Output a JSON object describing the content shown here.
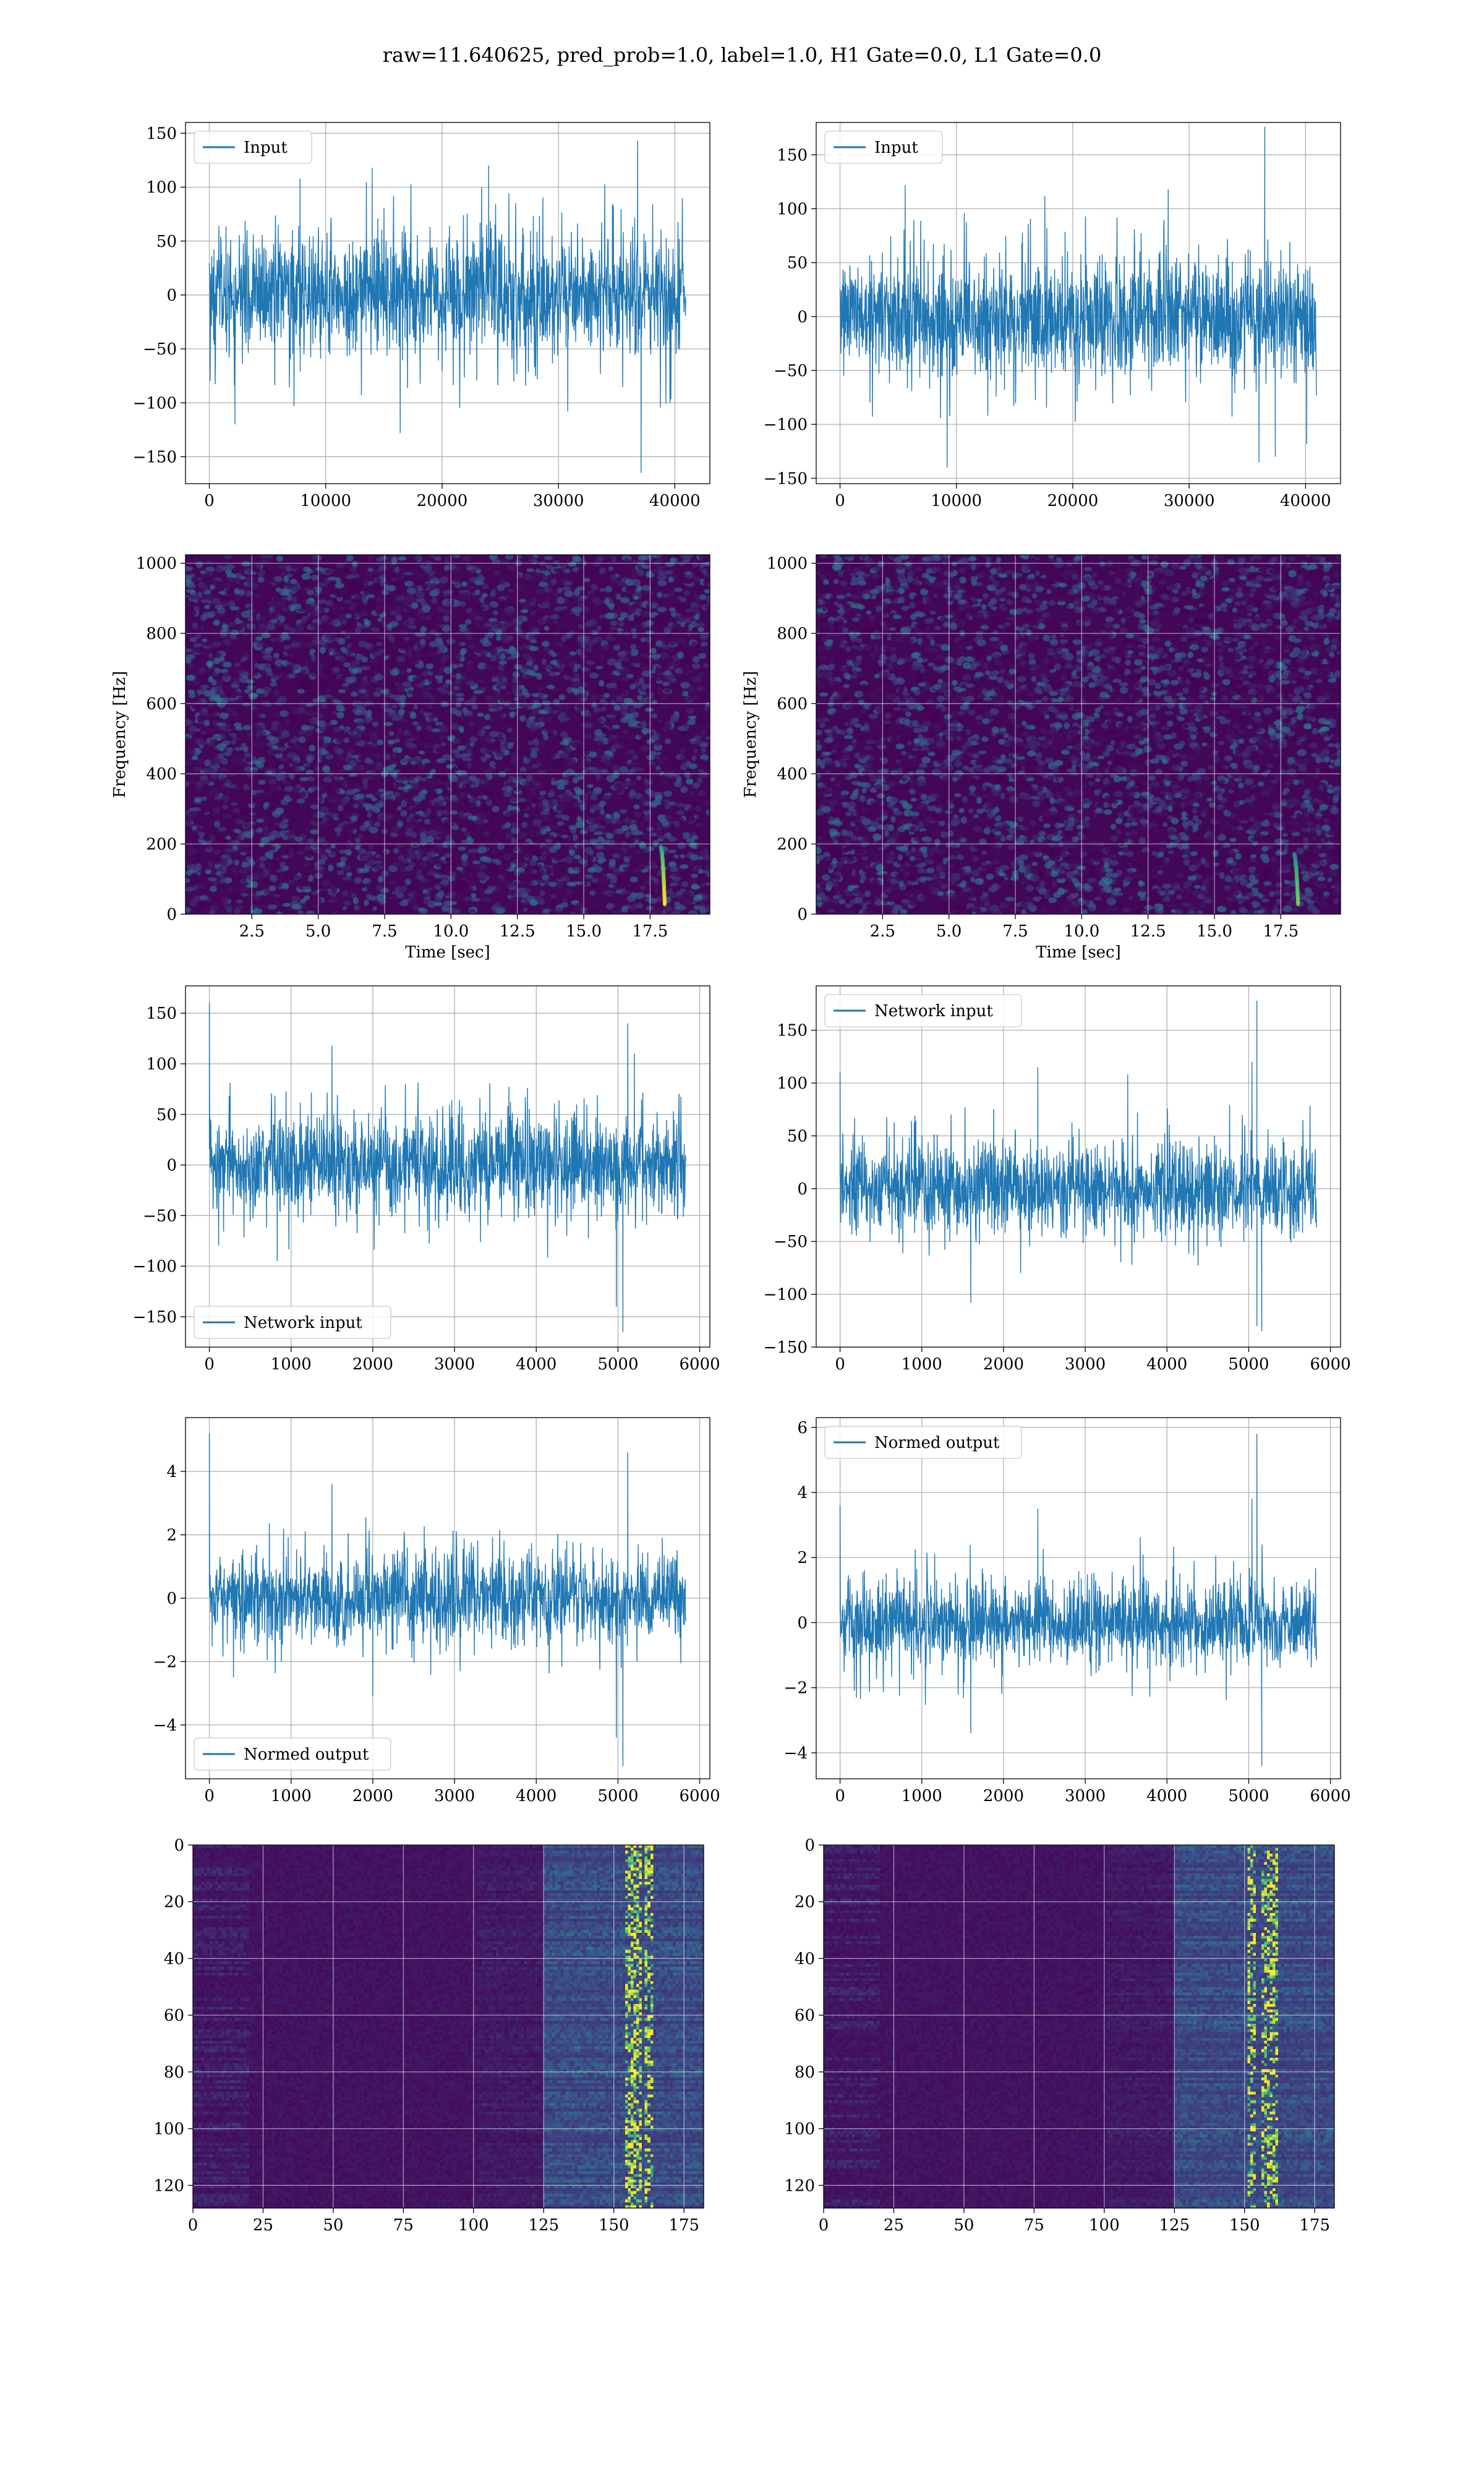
{
  "figure": {
    "suptitle": "raw=11.640625, pred_prob=1.0, label=1.0, H1 Gate=0.0, L1 Gate=0.0",
    "colors": {
      "line": "#1f77b4",
      "viridis_low": "#440154",
      "viridis_mid": "#21918c",
      "viridis_high": "#fde725"
    }
  },
  "chart_data": [
    {
      "id": "h1-input",
      "type": "line",
      "detector_column": "left",
      "legend": "Input",
      "legend_loc": "upper left",
      "xlim": [
        -2048,
        43008
      ],
      "ylim": [
        -175,
        160
      ],
      "xticks": [
        0,
        10000,
        20000,
        30000,
        40000
      ],
      "yticks": [
        -150,
        -100,
        -50,
        0,
        50,
        100,
        150
      ],
      "n_samples": 40960,
      "band": [
        -70,
        70
      ],
      "typical_peak": 105,
      "spikes": [
        {
          "x": 36800,
          "y": 143
        },
        {
          "x": 37100,
          "y": -165
        },
        {
          "x": 24000,
          "y": 120
        },
        {
          "x": 14000,
          "y": 118
        },
        {
          "x": 2200,
          "y": -120
        },
        {
          "x": 30800,
          "y": -108
        },
        {
          "x": 16400,
          "y": -128
        },
        {
          "x": 7800,
          "y": 108
        }
      ],
      "grid": true
    },
    {
      "id": "l1-input",
      "type": "line",
      "detector_column": "right",
      "legend": "Input",
      "legend_loc": "upper left",
      "xlim": [
        -2048,
        43008
      ],
      "ylim": [
        -155,
        180
      ],
      "xticks": [
        0,
        10000,
        20000,
        30000,
        40000
      ],
      "yticks": [
        -150,
        -100,
        -50,
        0,
        50,
        100,
        150
      ],
      "n_samples": 40960,
      "band": [
        -65,
        65
      ],
      "typical_peak": 100,
      "spikes": [
        {
          "x": 36500,
          "y": 176
        },
        {
          "x": 9200,
          "y": -140
        },
        {
          "x": 36000,
          "y": -135
        },
        {
          "x": 37400,
          "y": -130
        },
        {
          "x": 5600,
          "y": 122
        },
        {
          "x": 28200,
          "y": 118
        },
        {
          "x": 17600,
          "y": 112
        },
        {
          "x": 40100,
          "y": -118
        }
      ],
      "grid": true
    },
    {
      "id": "h1-spectrogram",
      "type": "heatmap",
      "detector_column": "left",
      "colormap": "viridis",
      "xlabel": "Time [sec]",
      "ylabel": "Frequency [Hz]",
      "xlim": [
        0.0,
        19.75
      ],
      "ylim": [
        0,
        1024
      ],
      "xticks": [
        2.5,
        5.0,
        7.5,
        10.0,
        12.5,
        15.0,
        17.5
      ],
      "xtick_labels": [
        "2.5",
        "5.0",
        "7.5",
        "10.0",
        "12.5",
        "15.0",
        "17.5"
      ],
      "yticks": [
        0,
        200,
        400,
        600,
        800,
        1000
      ],
      "chirp": {
        "t_start": 17.9,
        "t_end": 18.05,
        "f_low": 30,
        "f_high": 190,
        "peak_intensity": 1.0
      },
      "grid": true
    },
    {
      "id": "l1-spectrogram",
      "type": "heatmap",
      "detector_column": "right",
      "colormap": "viridis",
      "xlabel": "Time [sec]",
      "ylabel": "Frequency [Hz]",
      "xlim": [
        0.0,
        19.75
      ],
      "ylim": [
        0,
        1024
      ],
      "xticks": [
        2.5,
        5.0,
        7.5,
        10.0,
        12.5,
        15.0,
        17.5
      ],
      "xtick_labels": [
        "2.5",
        "5.0",
        "7.5",
        "10.0",
        "12.5",
        "15.0",
        "17.5"
      ],
      "yticks": [
        0,
        200,
        400,
        600,
        800,
        1000
      ],
      "chirp": {
        "t_start": 18.0,
        "t_end": 18.15,
        "f_low": 30,
        "f_high": 170,
        "peak_intensity": 0.8
      },
      "grid": true
    },
    {
      "id": "h1-network-input",
      "type": "line",
      "detector_column": "left",
      "legend": "Network input",
      "legend_loc": "lower left",
      "xlim": [
        -292,
        6124
      ],
      "ylim": [
        -180,
        177
      ],
      "xticks": [
        0,
        1000,
        2000,
        3000,
        4000,
        5000,
        6000
      ],
      "yticks": [
        -150,
        -100,
        -50,
        0,
        50,
        100,
        150
      ],
      "n_samples": 5832,
      "band": [
        -55,
        55
      ],
      "typical_peak": 85,
      "envelope_bumps": [
        {
          "x": 2700,
          "gain": 1.15
        },
        {
          "x": 3400,
          "gain": 1.1
        }
      ],
      "spikes": [
        {
          "x": 0,
          "y": 160
        },
        {
          "x": 5060,
          "y": -165
        },
        {
          "x": 5120,
          "y": 140
        },
        {
          "x": 4980,
          "y": -140
        },
        {
          "x": 5200,
          "y": 110
        },
        {
          "x": 1500,
          "y": 118
        },
        {
          "x": 830,
          "y": -95
        }
      ],
      "grid": true
    },
    {
      "id": "l1-network-input",
      "type": "line",
      "detector_column": "right",
      "legend": "Network input",
      "legend_loc": "upper left",
      "xlim": [
        -292,
        6124
      ],
      "ylim": [
        -150,
        192
      ],
      "xticks": [
        0,
        1000,
        2000,
        3000,
        4000,
        5000,
        6000
      ],
      "yticks": [
        -150,
        -100,
        -50,
        0,
        50,
        100,
        150
      ],
      "n_samples": 5832,
      "band": [
        -50,
        50
      ],
      "typical_peak": 80,
      "spikes": [
        {
          "x": 5100,
          "y": 178
        },
        {
          "x": 5040,
          "y": 120
        },
        {
          "x": 5160,
          "y": -135
        },
        {
          "x": 5100,
          "y": -130
        },
        {
          "x": 2420,
          "y": 115
        },
        {
          "x": 1600,
          "y": -108
        },
        {
          "x": 3520,
          "y": 108
        },
        {
          "x": 0,
          "y": 110
        }
      ],
      "grid": true
    },
    {
      "id": "h1-normed-output",
      "type": "line",
      "detector_column": "left",
      "legend": "Normed output",
      "legend_loc": "lower left",
      "xlim": [
        -292,
        6124
      ],
      "ylim": [
        -5.7,
        5.7
      ],
      "xticks": [
        0,
        1000,
        2000,
        3000,
        4000,
        5000,
        6000
      ],
      "yticks": [
        -4,
        -2,
        0,
        2,
        4
      ],
      "n_samples": 5832,
      "band": [
        -1.6,
        1.6
      ],
      "typical_peak": 2.6,
      "envelope_bumps": [
        {
          "x": 2700,
          "gain": 1.15
        },
        {
          "x": 3400,
          "gain": 1.1
        }
      ],
      "spikes": [
        {
          "x": 0,
          "y": 5.2
        },
        {
          "x": 5060,
          "y": -5.3
        },
        {
          "x": 5120,
          "y": 4.6
        },
        {
          "x": 4980,
          "y": -4.4
        },
        {
          "x": 1500,
          "y": 3.6
        },
        {
          "x": 2000,
          "y": -3.1
        }
      ],
      "grid": true
    },
    {
      "id": "l1-normed-output",
      "type": "line",
      "detector_column": "right",
      "legend": "Normed output",
      "legend_loc": "upper left",
      "xlim": [
        -292,
        6124
      ],
      "ylim": [
        -4.8,
        6.3
      ],
      "xticks": [
        0,
        1000,
        2000,
        3000,
        4000,
        5000,
        6000
      ],
      "yticks": [
        -4,
        -2,
        0,
        2,
        4,
        6
      ],
      "n_samples": 5832,
      "band": [
        -1.5,
        1.5
      ],
      "typical_peak": 2.5,
      "spikes": [
        {
          "x": 5100,
          "y": 5.8
        },
        {
          "x": 5040,
          "y": 3.8
        },
        {
          "x": 5160,
          "y": -4.4
        },
        {
          "x": 2420,
          "y": 3.5
        },
        {
          "x": 0,
          "y": 3.6
        },
        {
          "x": 1600,
          "y": -3.4
        }
      ],
      "grid": true
    },
    {
      "id": "h1-feature-map",
      "type": "heatmap",
      "detector_column": "left",
      "colormap": "viridis",
      "xlim": [
        0,
        182
      ],
      "ylim": [
        128,
        0
      ],
      "xticks": [
        0,
        25,
        50,
        75,
        100,
        125,
        150,
        175
      ],
      "yticks": [
        0,
        20,
        40,
        60,
        80,
        100,
        120
      ],
      "n_rows": 128,
      "n_cols": 182,
      "active_region_start": 125,
      "hot_columns": [
        155,
        158,
        162
      ],
      "peak_intensity": 1.0,
      "grid": true
    },
    {
      "id": "l1-feature-map",
      "type": "heatmap",
      "detector_column": "right",
      "colormap": "viridis",
      "xlim": [
        0,
        182
      ],
      "ylim": [
        128,
        0
      ],
      "xticks": [
        0,
        25,
        50,
        75,
        100,
        125,
        150,
        175
      ],
      "yticks": [
        0,
        20,
        40,
        60,
        80,
        100,
        120
      ],
      "n_rows": 128,
      "n_cols": 182,
      "active_region_start": 125,
      "hot_columns": [
        152,
        157,
        160
      ],
      "peak_intensity": 1.0,
      "grid": true
    }
  ]
}
